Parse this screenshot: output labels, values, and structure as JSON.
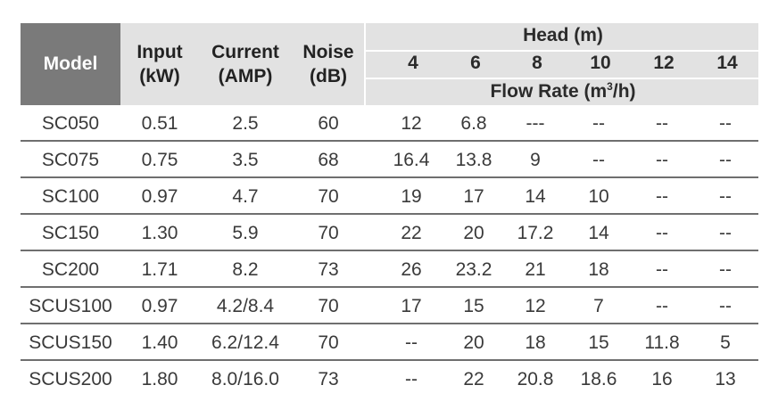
{
  "header": {
    "model": "Model",
    "input": [
      "Input",
      "(kW)"
    ],
    "current": [
      "Current",
      "(AMP)"
    ],
    "noise": [
      "Noise",
      "(dB)"
    ],
    "head_title": "Head (m)",
    "head_values": [
      "4",
      "6",
      "8",
      "10",
      "12",
      "14"
    ],
    "flow_label": "Flow Rate (m",
    "flow_sup": "3",
    "flow_tail": "/h)"
  },
  "rows": [
    {
      "model": "SC050",
      "input": "0.51",
      "current": "2.5",
      "noise": "60",
      "flow": [
        "12",
        "6.8",
        "---",
        "--",
        "--",
        "--"
      ]
    },
    {
      "model": "SC075",
      "input": "0.75",
      "current": "3.5",
      "noise": "68",
      "flow": [
        "16.4",
        "13.8",
        "9",
        "--",
        "--",
        "--"
      ]
    },
    {
      "model": "SC100",
      "input": "0.97",
      "current": "4.7",
      "noise": "70",
      "flow": [
        "19",
        "17",
        "14",
        "10",
        "--",
        "--"
      ]
    },
    {
      "model": "SC150",
      "input": "1.30",
      "current": "5.9",
      "noise": "70",
      "flow": [
        "22",
        "20",
        "17.2",
        "14",
        "--",
        "--"
      ]
    },
    {
      "model": "SC200",
      "input": "1.71",
      "current": "8.2",
      "noise": "73",
      "flow": [
        "26",
        "23.2",
        "21",
        "18",
        "--",
        "--"
      ]
    },
    {
      "model": "SCUS100",
      "input": "0.97",
      "current": "4.2/8.4",
      "noise": "70",
      "flow": [
        "17",
        "15",
        "12",
        "7",
        "--",
        "--"
      ]
    },
    {
      "model": "SCUS150",
      "input": "1.40",
      "current": "6.2/12.4",
      "noise": "70",
      "flow": [
        "--",
        "20",
        "18",
        "15",
        "11.8",
        "5"
      ]
    },
    {
      "model": "SCUS200",
      "input": "1.80",
      "current": "8.0/16.0",
      "noise": "73",
      "flow": [
        "--",
        "22",
        "20.8",
        "18.6",
        "16",
        "13"
      ]
    }
  ]
}
